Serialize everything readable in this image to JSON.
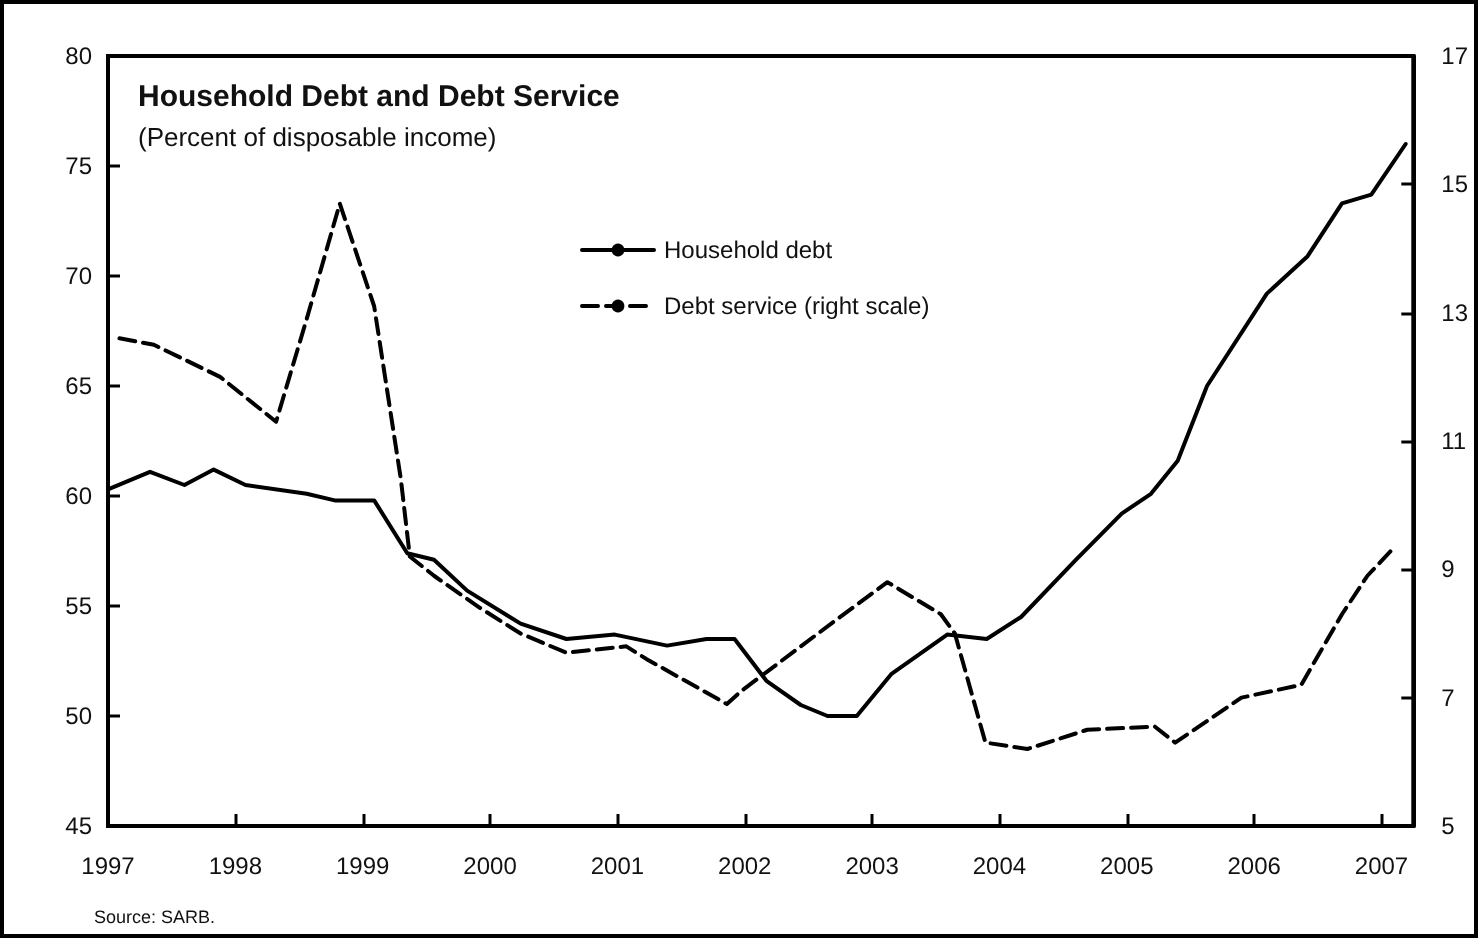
{
  "chart_data": {
    "type": "line",
    "title": "Household Debt and Debt Service",
    "subtitle": "(Percent of disposable income)",
    "annotations": [
      "Source: SARB."
    ],
    "xlim": [
      1997,
      2007.25
    ],
    "xticks": [
      1997,
      1998,
      1999,
      2000,
      2001,
      2002,
      2003,
      2004,
      2005,
      2006,
      2007
    ],
    "ylim": [
      45,
      80
    ],
    "yticks": [
      45,
      50,
      55,
      60,
      65,
      70,
      75,
      80
    ],
    "y2lim": [
      5,
      17
    ],
    "y2ticks": [
      5,
      7,
      9,
      11,
      13,
      15,
      17
    ],
    "grid": false,
    "legend": "top",
    "marker": "none",
    "series": [
      {
        "name": "Household debt",
        "color": "#000000",
        "line_style": "solid",
        "x": [
          1997.0,
          1997.33,
          1997.6,
          1997.83,
          1998.08,
          1998.56,
          1998.78,
          1999.09,
          1999.35,
          1999.56,
          1999.82,
          2000.24,
          2000.6,
          2000.98,
          2001.39,
          2001.7,
          2001.92,
          2002.17,
          2002.44,
          2002.65,
          2002.88,
          2003.15,
          2003.59,
          2003.9,
          2004.17,
          2004.6,
          2004.96,
          2005.19,
          2005.4,
          2005.63,
          2006.1,
          2006.42,
          2006.69,
          2006.92,
          2007.19
        ],
        "values": [
          60.3,
          61.1,
          60.5,
          61.2,
          60.5,
          60.1,
          59.8,
          59.8,
          57.4,
          57.1,
          55.7,
          54.2,
          53.5,
          53.7,
          53.2,
          53.5,
          53.5,
          51.6,
          50.5,
          50.0,
          50.0,
          51.9,
          53.7,
          53.5,
          54.5,
          57.1,
          59.2,
          60.1,
          61.6,
          65.0,
          69.2,
          70.9,
          73.3,
          73.7,
          76.0
        ]
      },
      {
        "name": "Debt service (right scale)",
        "color": "#000000",
        "line_style": "dashed",
        "axis": "y2",
        "x": [
          1997.09,
          1997.36,
          1997.88,
          1998.32,
          1998.56,
          1998.82,
          1999.09,
          1999.3,
          1999.37,
          1999.56,
          1999.92,
          2000.24,
          2000.6,
          2001.07,
          2001.23,
          2001.86,
          2001.97,
          2002.71,
          2003.12,
          2003.54,
          2003.65,
          2003.89,
          2004.22,
          2004.69,
          2005.22,
          2005.38,
          2005.9,
          2006.37,
          2006.69,
          2006.89,
          2007.08
        ],
        "values": [
          12.6,
          12.5,
          12.0,
          11.3,
          12.9,
          14.7,
          13.1,
          10.4,
          9.2,
          8.9,
          8.4,
          8.0,
          7.7,
          7.8,
          7.6,
          6.9,
          7.1,
          8.2,
          8.8,
          8.3,
          8.0,
          6.3,
          6.2,
          6.5,
          6.55,
          6.3,
          7.0,
          7.2,
          8.3,
          8.9,
          9.3
        ]
      }
    ]
  }
}
